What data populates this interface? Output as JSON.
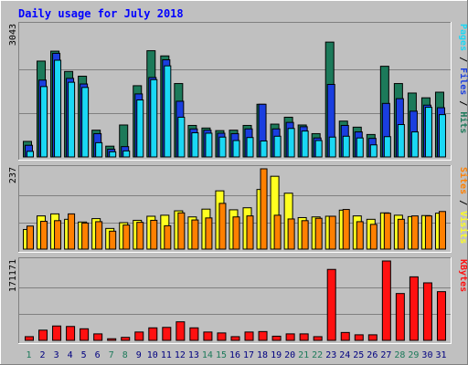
{
  "title": "Daily usage for July 2018",
  "colors": {
    "background": "#c0c0c0",
    "plot_bg": "#c0c0c0",
    "title": "#0000ff",
    "hits": "#1c7a5a",
    "files": "#1a3ee0",
    "pages": "#1ad8f5",
    "visits": "#ffff20",
    "sites": "#ff8000",
    "kbytes": "#ff1010",
    "weekend_label": "#1c7a5a",
    "weekday_label": "#000080"
  },
  "chart_data": [
    {
      "type": "bar",
      "panel": "top",
      "ymax_label": "3043",
      "right_label_parts": [
        {
          "text": "Pages",
          "color_key": "pages"
        },
        {
          "text": " / ",
          "color_key": "divider"
        },
        {
          "text": "Files",
          "color_key": "files"
        },
        {
          "text": " / ",
          "color_key": "divider"
        },
        {
          "text": "Hits",
          "color_key": "hits"
        }
      ],
      "ylim": [
        0,
        3043
      ],
      "categories": [
        "1",
        "2",
        "3",
        "4",
        "5",
        "6",
        "7",
        "8",
        "9",
        "10",
        "11",
        "12",
        "13",
        "14",
        "15",
        "16",
        "17",
        "18",
        "19",
        "20",
        "21",
        "22",
        "23",
        "24",
        "25",
        "26",
        "27",
        "28",
        "29",
        "30",
        "31"
      ],
      "series": [
        {
          "name": "Hits",
          "values": [
            360,
            2220,
            2450,
            1980,
            1870,
            620,
            250,
            740,
            1650,
            2460,
            2340,
            1700,
            730,
            670,
            610,
            620,
            730,
            1220,
            760,
            920,
            740,
            540,
            2660,
            830,
            690,
            520,
            2100,
            1700,
            1480,
            1370,
            1500
          ]
        },
        {
          "name": "Files",
          "values": [
            270,
            1780,
            2400,
            1820,
            1690,
            540,
            180,
            240,
            1460,
            1840,
            2250,
            1290,
            650,
            620,
            550,
            540,
            650,
            1220,
            650,
            800,
            700,
            440,
            1680,
            730,
            580,
            430,
            1240,
            1350,
            1060,
            1200,
            1140
          ]
        },
        {
          "name": "Pages",
          "values": [
            130,
            1630,
            2240,
            1730,
            1610,
            330,
            120,
            140,
            1320,
            1790,
            2110,
            920,
            560,
            550,
            460,
            380,
            450,
            370,
            480,
            660,
            600,
            380,
            460,
            480,
            440,
            280,
            470,
            750,
            580,
            1150,
            980
          ]
        }
      ]
    },
    {
      "type": "bar",
      "panel": "middle",
      "ymax_label": "237",
      "right_label_parts": [
        {
          "text": "Sites",
          "color_key": "sites"
        },
        {
          "text": " / ",
          "color_key": "divider"
        },
        {
          "text": "Visits",
          "color_key": "visits"
        }
      ],
      "ylim": [
        0,
        237
      ],
      "categories": [
        "1",
        "2",
        "3",
        "4",
        "5",
        "6",
        "7",
        "8",
        "9",
        "10",
        "11",
        "12",
        "13",
        "14",
        "15",
        "16",
        "17",
        "18",
        "19",
        "20",
        "21",
        "22",
        "23",
        "24",
        "25",
        "26",
        "27",
        "28",
        "29",
        "30",
        "31"
      ],
      "series": [
        {
          "name": "Visits",
          "values": [
            58,
            98,
            104,
            88,
            80,
            90,
            61,
            78,
            85,
            97,
            100,
            113,
            95,
            118,
            172,
            116,
            122,
            176,
            215,
            165,
            93,
            95,
            97,
            115,
            98,
            88,
            107,
            100,
            96,
            99,
            106
          ]
        },
        {
          "name": "Sites",
          "values": [
            68,
            82,
            84,
            104,
            77,
            81,
            53,
            71,
            79,
            85,
            69,
            107,
            86,
            92,
            135,
            95,
            98,
            237,
            100,
            89,
            84,
            91,
            97,
            117,
            81,
            73,
            106,
            88,
            98,
            98,
            111
          ]
        }
      ]
    },
    {
      "type": "bar",
      "panel": "bottom",
      "ymax_label": "171171",
      "right_label_parts": [
        {
          "text": "KBytes",
          "color_key": "kbytes"
        }
      ],
      "ylim": [
        0,
        171171
      ],
      "categories": [
        "1",
        "2",
        "3",
        "4",
        "5",
        "6",
        "7",
        "8",
        "9",
        "10",
        "11",
        "12",
        "13",
        "14",
        "15",
        "16",
        "17",
        "18",
        "19",
        "20",
        "21",
        "22",
        "23",
        "24",
        "25",
        "26",
        "27",
        "28",
        "29",
        "30",
        "31"
      ],
      "series": [
        {
          "name": "KBytes",
          "values": [
            8000,
            22000,
            31000,
            30000,
            25000,
            14000,
            3500,
            6500,
            18000,
            27000,
            28000,
            40000,
            27000,
            18000,
            16000,
            8000,
            18000,
            19000,
            9000,
            14000,
            14000,
            8000,
            153000,
            17000,
            12000,
            12000,
            171171,
            101000,
            137000,
            124000,
            105000
          ]
        }
      ]
    }
  ],
  "x_axis": {
    "labels": [
      "1",
      "2",
      "3",
      "4",
      "5",
      "6",
      "7",
      "8",
      "9",
      "10",
      "11",
      "12",
      "13",
      "14",
      "15",
      "16",
      "17",
      "18",
      "19",
      "20",
      "21",
      "22",
      "23",
      "24",
      "25",
      "26",
      "27",
      "28",
      "29",
      "30",
      "31"
    ],
    "weekend_days": [
      "1",
      "7",
      "8",
      "14",
      "15",
      "21",
      "22",
      "28",
      "29"
    ]
  }
}
